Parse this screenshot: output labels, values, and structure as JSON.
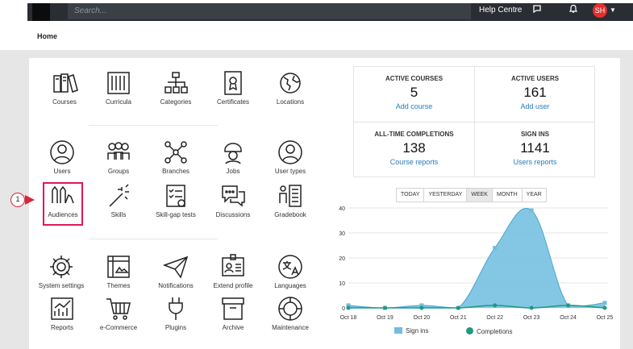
{
  "topbar": {
    "search_placeholder": "Search...",
    "help_label": "Help Centre",
    "avatar_initials": "SH"
  },
  "breadcrumb": "Home",
  "tiles": {
    "courses": "Courses",
    "curricula": "Curricula",
    "categories": "Categories",
    "certificates": "Certificates",
    "locations": "Locations",
    "users": "Users",
    "groups": "Groups",
    "branches": "Branches",
    "jobs": "Jobs",
    "user_types": "User types",
    "audiences": "Audiences",
    "skills": "Skills",
    "skill_gap_tests": "Skill-gap tests",
    "discussions": "Discussions",
    "gradebook": "Gradebook",
    "system_settings": "System settings",
    "themes": "Themes",
    "notifications": "Notifications",
    "extend_profile": "Extend profile",
    "languages": "Languages",
    "reports": "Reports",
    "ecommerce": "e-Commerce",
    "plugins": "Plugins",
    "archive": "Archive",
    "maintenance": "Maintenance"
  },
  "callout_number": "1",
  "stats": {
    "active_courses": {
      "title": "ACTIVE COURSES",
      "value": "5",
      "link": "Add course"
    },
    "active_users": {
      "title": "ACTIVE USERS",
      "value": "161",
      "link": "Add user"
    },
    "completions": {
      "title": "ALL-TIME COMPLETIONS",
      "value": "138",
      "link": "Course reports"
    },
    "sign_ins": {
      "title": "SIGN INS",
      "value": "1141",
      "link": "Users reports"
    }
  },
  "range_tabs": [
    "TODAY",
    "YESTERDAY",
    "WEEK",
    "MONTH",
    "YEAR"
  ],
  "range_selected": "WEEK",
  "colors": {
    "accent_link": "#2b7bb9",
    "sign_ins": "#6fbde0",
    "completions": "#1e9a82",
    "highlight": "#e0165f"
  },
  "chart_data": {
    "type": "area",
    "categories": [
      "Oct 18",
      "Oct 19",
      "Oct 20",
      "Oct 21",
      "Oct 22",
      "Oct 23",
      "Oct 24",
      "Oct 25"
    ],
    "series": [
      {
        "name": "Sign ins",
        "values": [
          1,
          0,
          1,
          0,
          24,
          39,
          1,
          2
        ]
      },
      {
        "name": "Completions",
        "values": [
          0,
          0,
          0,
          0,
          1,
          0,
          1,
          0
        ]
      }
    ],
    "yticks": [
      0,
      10,
      20,
      30,
      40
    ],
    "ylim": [
      0,
      40
    ],
    "legend": "bottom"
  }
}
